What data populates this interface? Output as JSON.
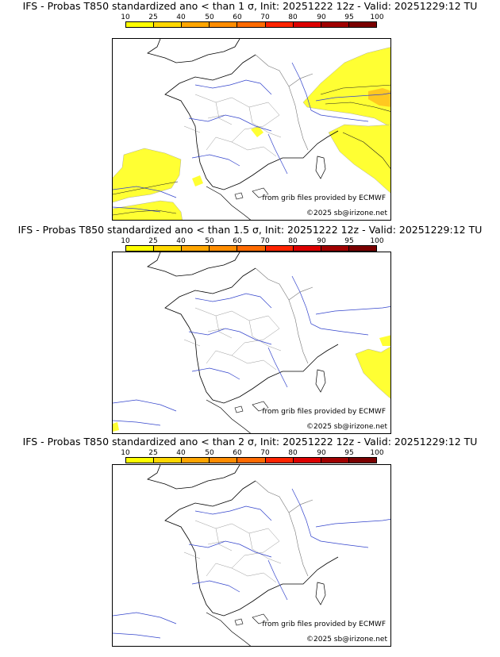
{
  "scale": {
    "labels": [
      "10",
      "25",
      "40",
      "50",
      "60",
      "70",
      "80",
      "90",
      "95",
      "100"
    ],
    "colors": [
      "#ffff00",
      "#ffd700",
      "#ffa500",
      "#ff8c00",
      "#ff6a00",
      "#ff2400",
      "#dc0000",
      "#a00000",
      "#7a0000"
    ]
  },
  "maps": [
    {
      "title": "IFS - Probas T850  standardized ano < than 1 σ, Init: 20251222 12z - Valid: 20251229:12 TU",
      "source": "from grib files provided by ECMWF",
      "copyright": "©2025 sb@irizone.net"
    },
    {
      "title": "IFS - Probas T850  standardized ano < than 1.5 σ, Init: 20251222 12z - Valid: 20251229:12 TU",
      "source": "from grib files provided by ECMWF",
      "copyright": "©2025 sb@irizone.net"
    },
    {
      "title": "IFS - Probas T850  standardized ano < than 2 σ, Init: 20251222 12z - Valid: 20251229:12 TU",
      "source": "from grib files provided by ECMWF",
      "copyright": "©2025 sb@irizone.net"
    }
  ]
}
